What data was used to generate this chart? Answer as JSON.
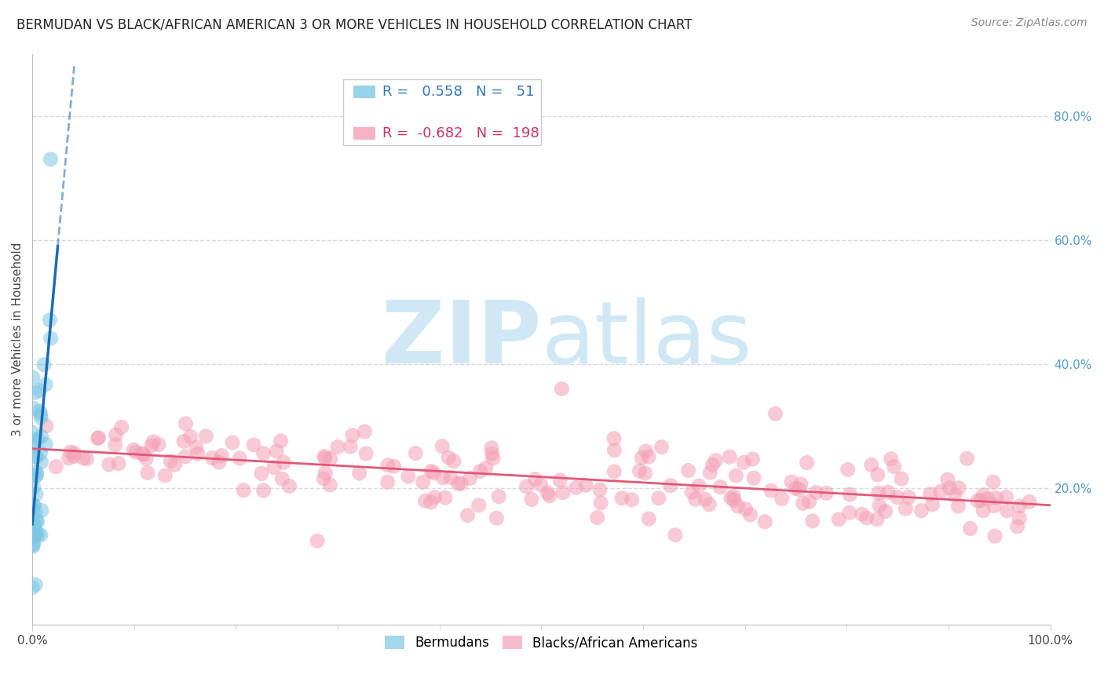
{
  "title": "BERMUDAN VS BLACK/AFRICAN AMERICAN 3 OR MORE VEHICLES IN HOUSEHOLD CORRELATION CHART",
  "source": "Source: ZipAtlas.com",
  "ylabel": "3 or more Vehicles in Household",
  "legend_blue_R": "0.558",
  "legend_blue_N": "51",
  "legend_pink_R": "-0.682",
  "legend_pink_N": "198",
  "blue_color": "#7ec8e3",
  "pink_color": "#f4a0b5",
  "blue_line_color": "#1a6bb5",
  "pink_line_color": "#e05878",
  "watermark_zip": "ZIP",
  "watermark_atlas": "atlas",
  "watermark_color": "#d0e8f5",
  "title_fontsize": 12,
  "source_fontsize": 10,
  "ylabel_fontsize": 11,
  "tick_fontsize": 11,
  "blue_R": 0.558,
  "blue_N": 51,
  "pink_R": -0.682,
  "pink_N": 198,
  "xlim": [
    0.0,
    1.0
  ],
  "ylim": [
    -0.02,
    0.9
  ],
  "grid_color": "#d8d8d8",
  "background_color": "#ffffff",
  "right_yticks": [
    0.2,
    0.4,
    0.6,
    0.8
  ],
  "right_yticklabels": [
    "20.0%",
    "40.0%",
    "60.0%",
    "80.0%"
  ]
}
